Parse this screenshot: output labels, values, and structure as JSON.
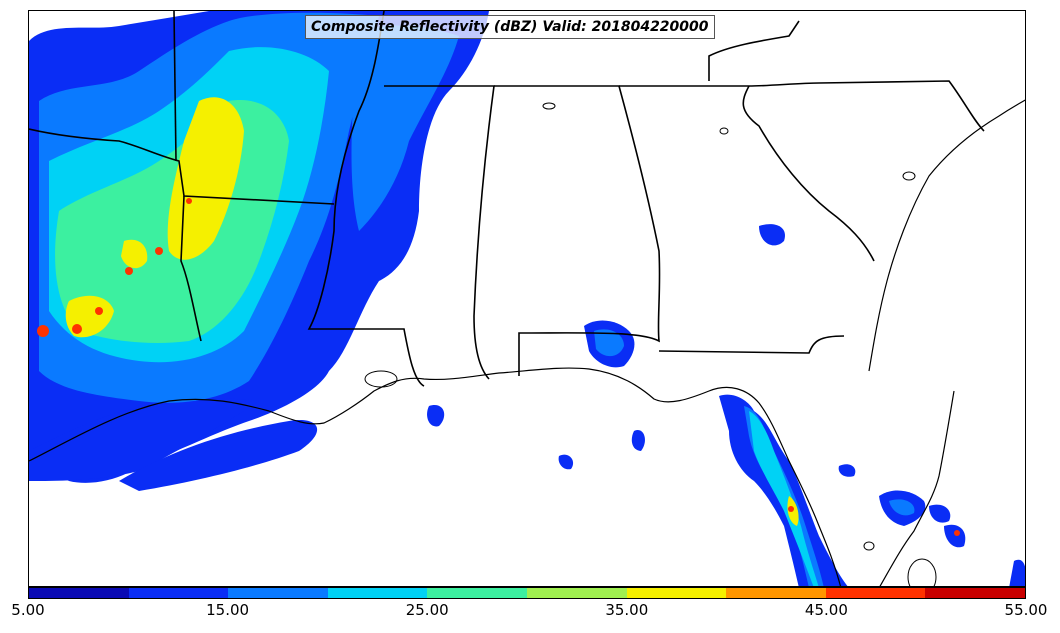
{
  "map": {
    "title": "Composite Reflectivity (dBZ) Valid: 201804220000"
  },
  "colorbar": {
    "ticks": [
      "5.00",
      "15.00",
      "25.00",
      "35.00",
      "45.00",
      "55.00"
    ],
    "colors": [
      "#0a0ab4",
      "#0a2df5",
      "#0a7aff",
      "#00d2f5",
      "#3cf0a0",
      "#a0f050",
      "#f5f000",
      "#ff9600",
      "#ff3200",
      "#c80000"
    ]
  }
}
